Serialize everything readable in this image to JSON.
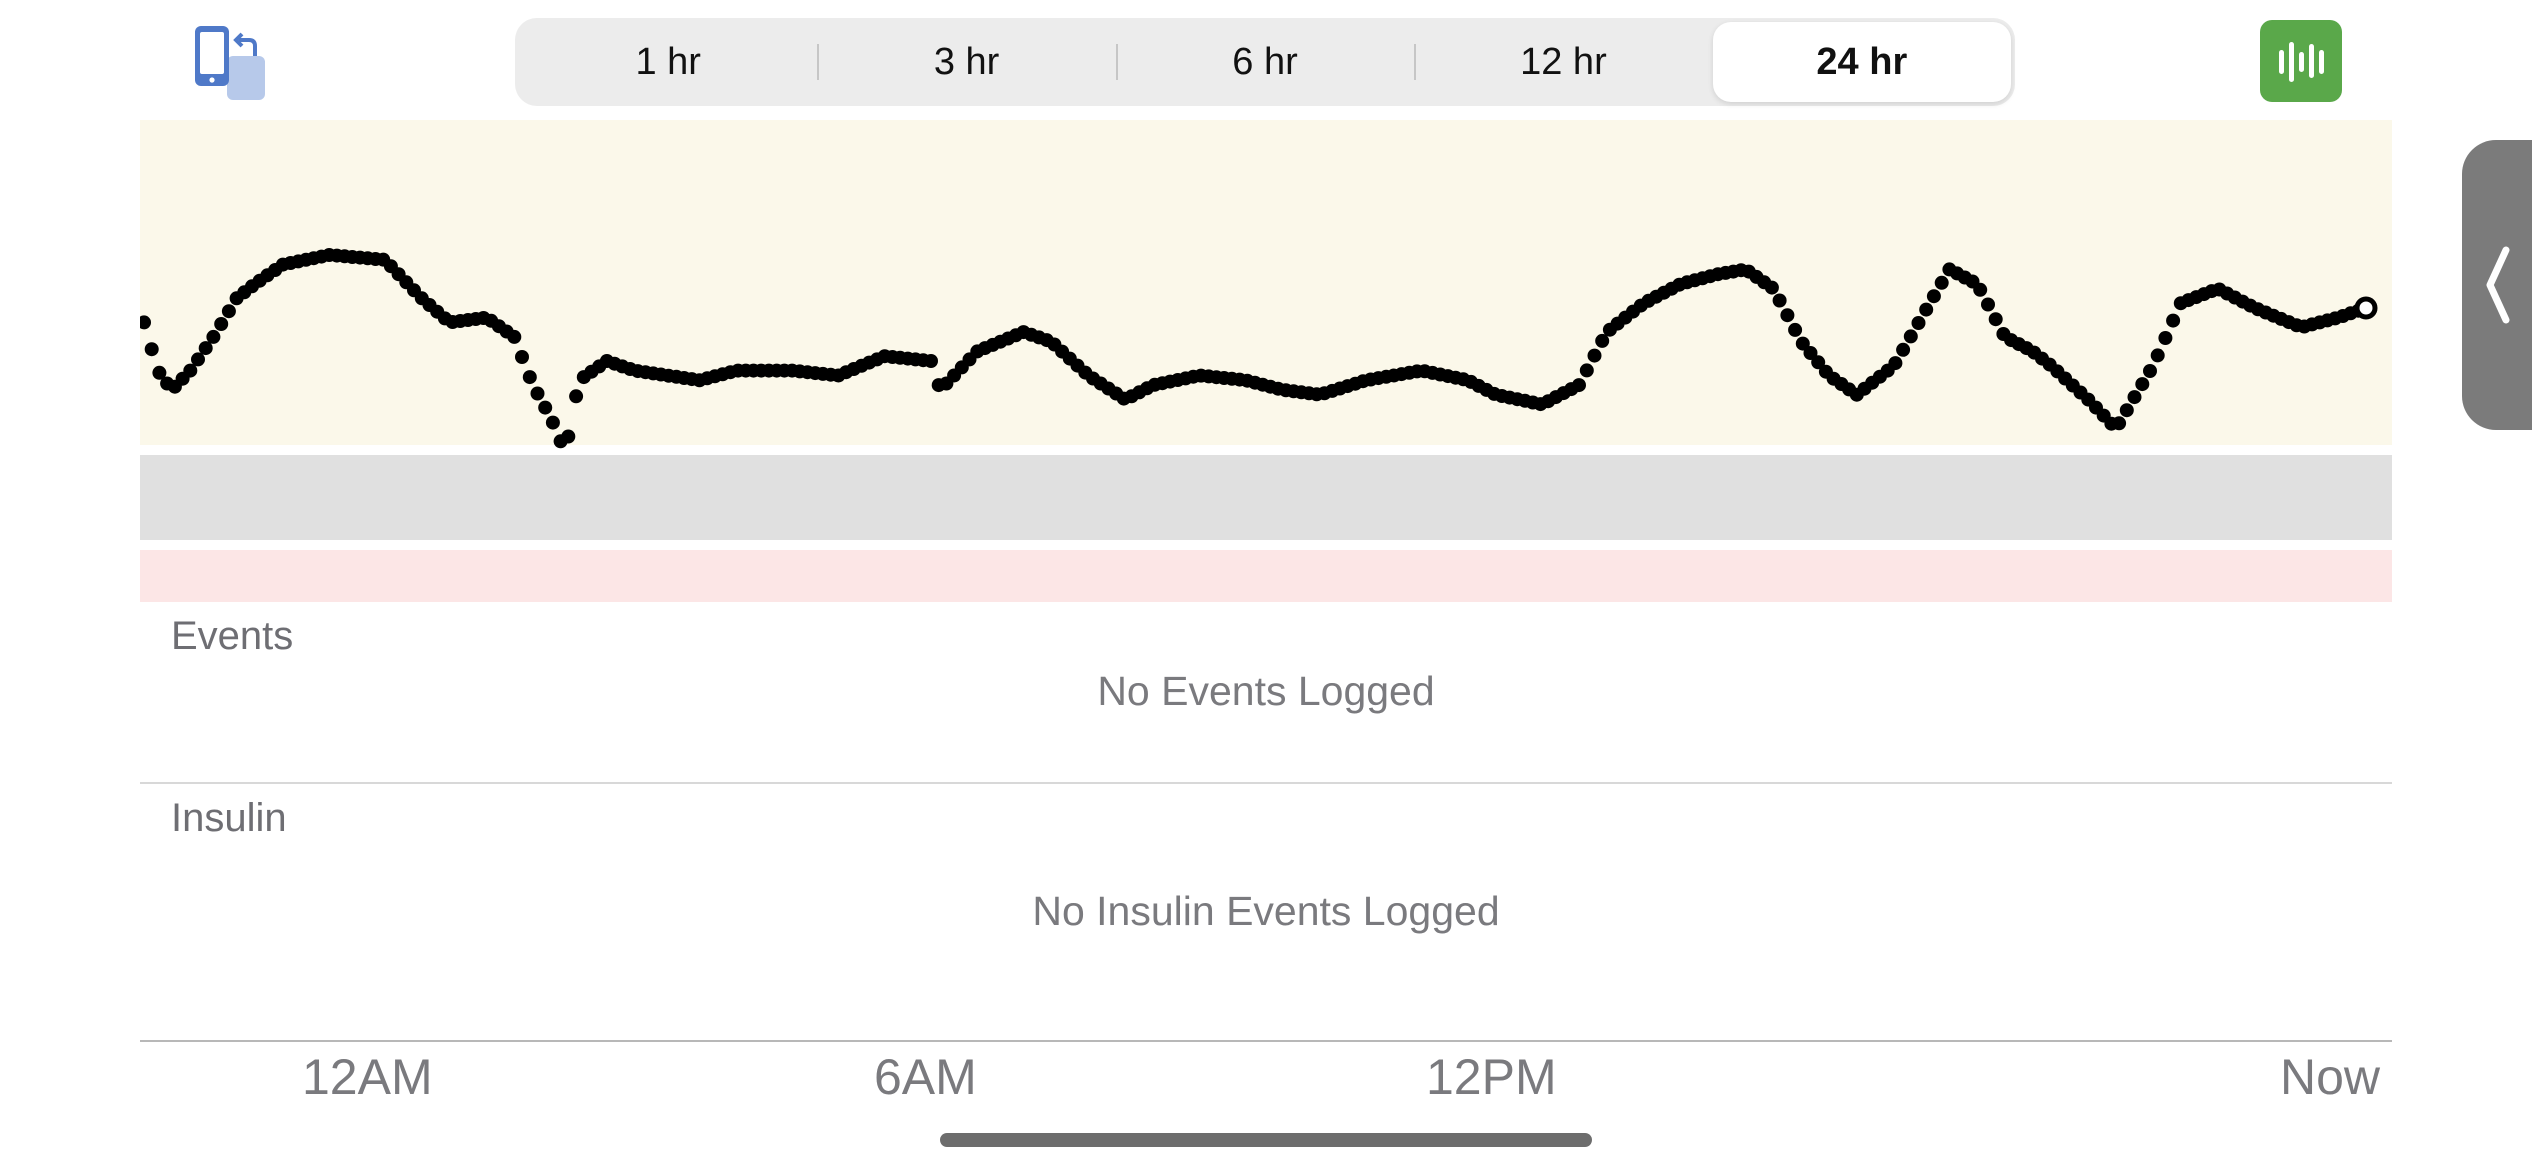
{
  "toolbar": {
    "rotate_icon": "rotate-device-icon",
    "stats_icon": "bar-chart-icon",
    "ranges": [
      "1 hr",
      "3 hr",
      "6 hr",
      "12 hr",
      "24 hr"
    ],
    "selected_range": "24 hr"
  },
  "side_tab_icon": "chevron-left-icon",
  "events": {
    "title": "Events",
    "empty_message": "No Events Logged"
  },
  "insulin": {
    "title": "Insulin",
    "empty_message": "No Insulin Events Logged"
  },
  "colors": {
    "high_band": "#fbf8ea",
    "target_band": "#e0e0e0",
    "low_band": "#fce6e6",
    "stats_button": "#5aa84a",
    "dot": "#000000"
  },
  "chart_data": {
    "type": "scatter",
    "x_axis_labels": [
      "12AM",
      "6AM",
      "12PM",
      "Now"
    ],
    "x_unit": "hours (0 = start of 24 hr window, 24 = Now)",
    "bands": [
      "high",
      "target",
      "low"
    ],
    "trace": [
      [
        0.0,
        0.58
      ],
      [
        0.15,
        0.48
      ],
      [
        0.3,
        0.44
      ],
      [
        0.5,
        0.48
      ],
      [
        0.75,
        0.55
      ],
      [
        1.0,
        0.63
      ],
      [
        1.2,
        0.66
      ],
      [
        1.5,
        0.7
      ],
      [
        2.0,
        0.72
      ],
      [
        2.6,
        0.71
      ],
      [
        3.0,
        0.63
      ],
      [
        3.3,
        0.58
      ],
      [
        3.7,
        0.59
      ],
      [
        4.0,
        0.55
      ],
      [
        4.2,
        0.45
      ],
      [
        4.4,
        0.38
      ],
      [
        4.55,
        0.31
      ],
      [
        4.7,
        0.46
      ],
      [
        5.0,
        0.5
      ],
      [
        5.3,
        0.48
      ],
      [
        6.0,
        0.46
      ],
      [
        6.4,
        0.48
      ],
      [
        7.0,
        0.48
      ],
      [
        7.5,
        0.47
      ],
      [
        8.0,
        0.51
      ],
      [
        8.5,
        0.5
      ],
      [
        8.6,
        0.44
      ],
      [
        9.0,
        0.52
      ],
      [
        9.5,
        0.56
      ],
      [
        9.8,
        0.54
      ],
      [
        10.2,
        0.47
      ],
      [
        10.6,
        0.42
      ],
      [
        10.9,
        0.45
      ],
      [
        11.4,
        0.47
      ],
      [
        11.9,
        0.46
      ],
      [
        12.3,
        0.44
      ],
      [
        12.7,
        0.43
      ],
      [
        13.2,
        0.46
      ],
      [
        13.8,
        0.48
      ],
      [
        14.3,
        0.46
      ],
      [
        14.6,
        0.43
      ],
      [
        15.1,
        0.41
      ],
      [
        15.5,
        0.45
      ],
      [
        15.8,
        0.56
      ],
      [
        16.2,
        0.62
      ],
      [
        16.6,
        0.66
      ],
      [
        17.0,
        0.68
      ],
      [
        17.3,
        0.69
      ],
      [
        17.6,
        0.65
      ],
      [
        17.9,
        0.54
      ],
      [
        18.2,
        0.47
      ],
      [
        18.5,
        0.43
      ],
      [
        18.9,
        0.49
      ],
      [
        19.2,
        0.59
      ],
      [
        19.5,
        0.69
      ],
      [
        19.8,
        0.66
      ],
      [
        20.1,
        0.55
      ],
      [
        20.4,
        0.52
      ],
      [
        20.6,
        0.49
      ],
      [
        21.0,
        0.42
      ],
      [
        21.3,
        0.36
      ],
      [
        21.7,
        0.49
      ],
      [
        22.0,
        0.62
      ],
      [
        22.4,
        0.65
      ],
      [
        22.8,
        0.61
      ],
      [
        23.3,
        0.57
      ],
      [
        23.7,
        0.59
      ],
      [
        24.0,
        0.61
      ]
    ]
  },
  "axis": {
    "labels": [
      "12AM",
      "6AM",
      "12PM",
      "Now"
    ]
  }
}
